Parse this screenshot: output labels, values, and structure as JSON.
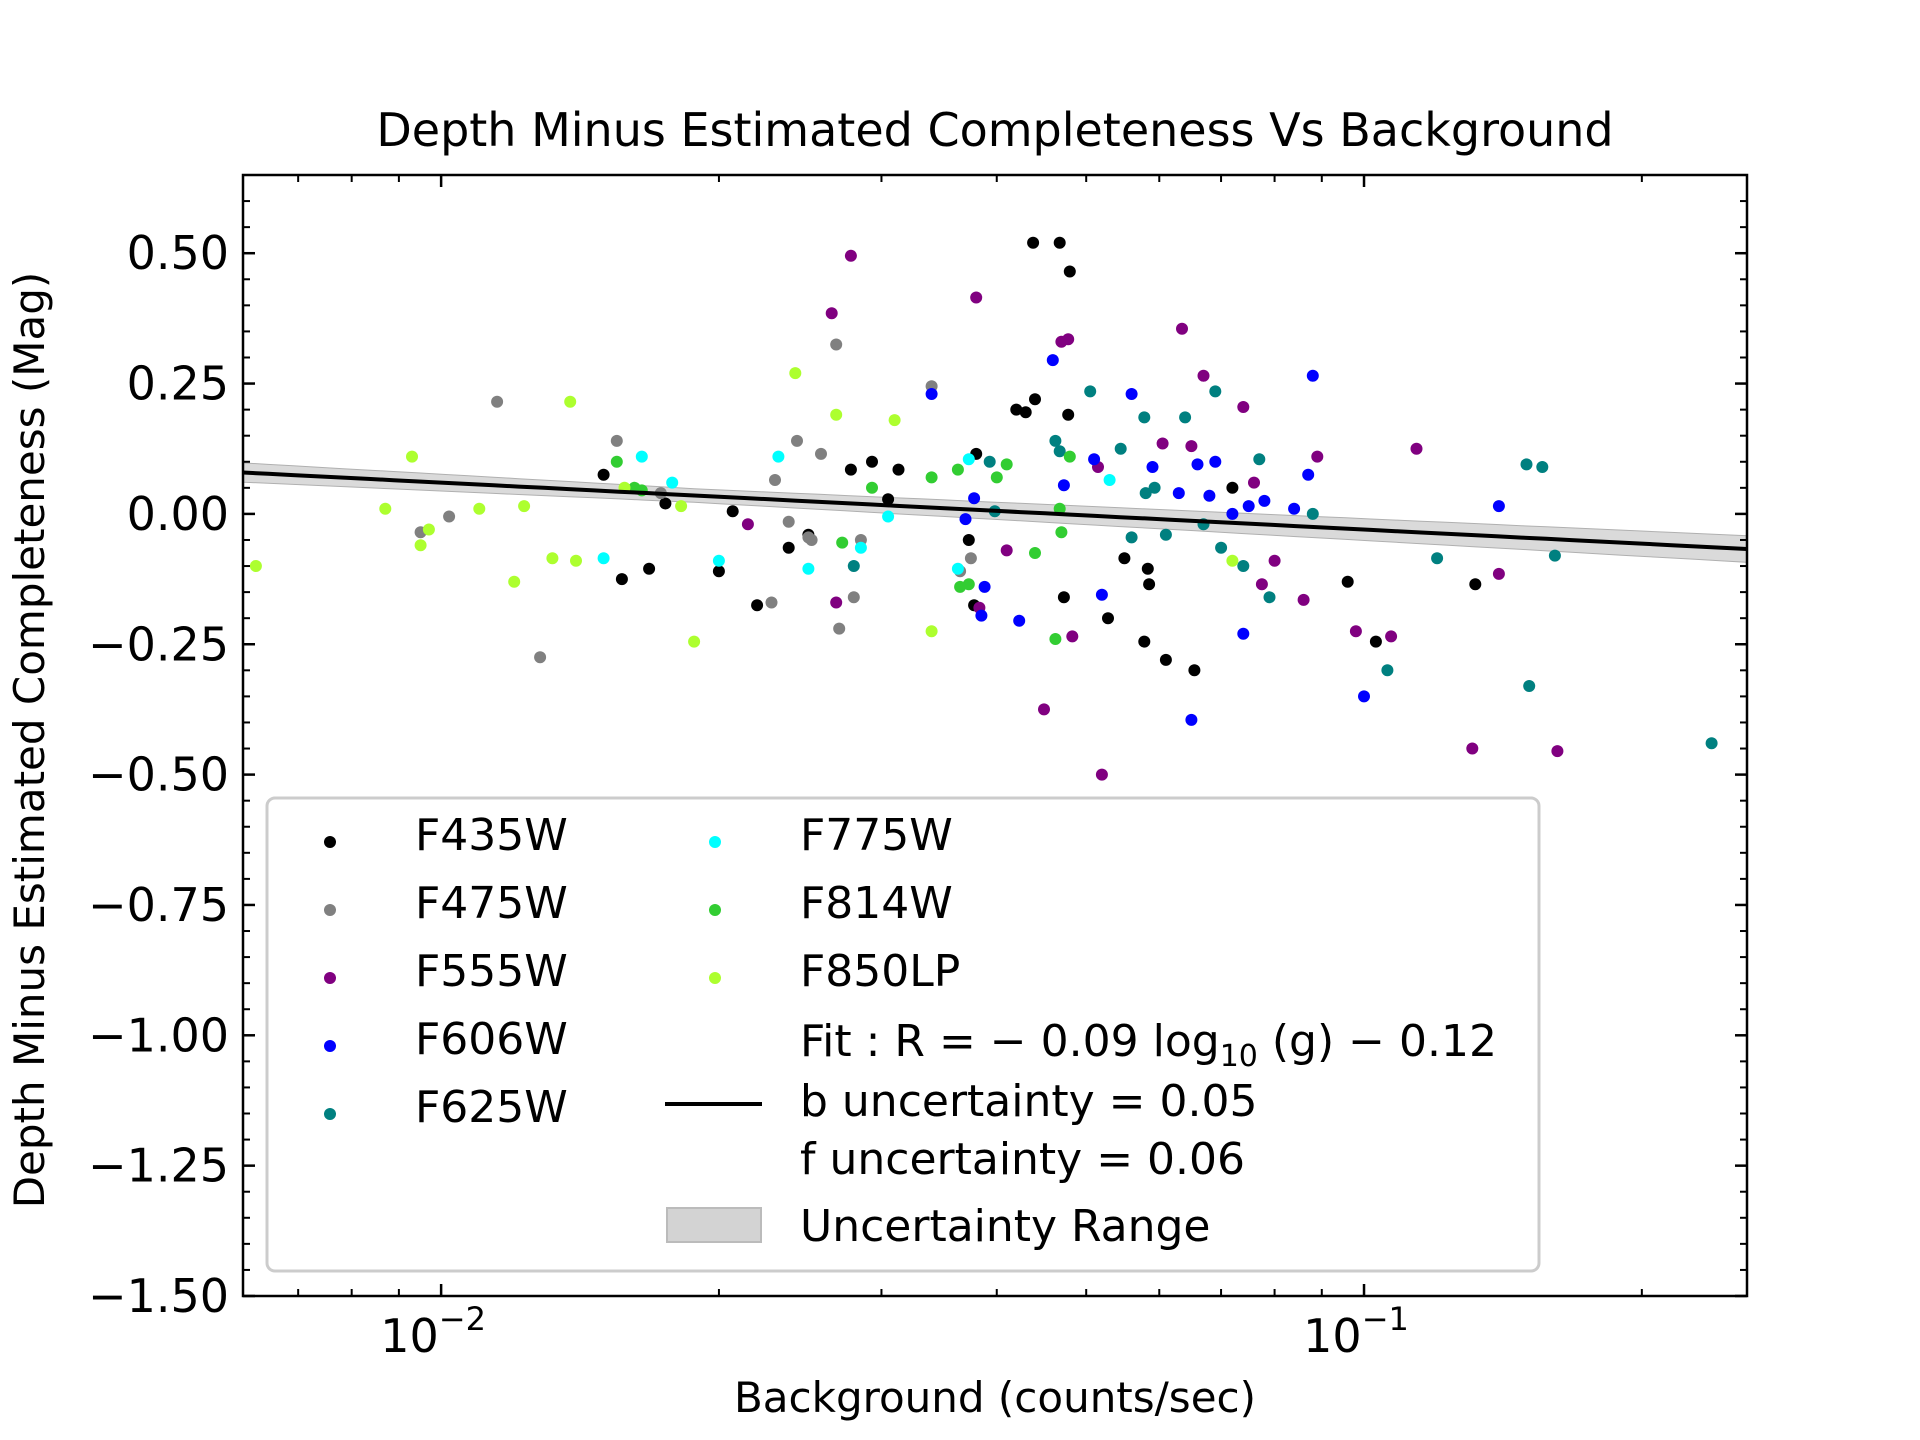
{
  "chart_data": {
    "type": "scatter",
    "title": "Depth Minus Estimated Completeness Vs Background",
    "xlabel": "Background (counts/sec)",
    "ylabel": "Depth Minus Estimated Completeness (Mag)",
    "xscale": "log",
    "xlim": [
      0.0061,
      0.26
    ],
    "ylim": [
      -1.5,
      0.65
    ],
    "yticks": [
      0.5,
      0.25,
      0.0,
      -0.25,
      -0.5,
      -0.75,
      -1.0,
      -1.25,
      -1.5
    ],
    "ytick_labels": [
      "0.50",
      "0.25",
      "0.00",
      "−0.25",
      "−0.50",
      "−0.75",
      "−1.00",
      "−1.25",
      "−1.50"
    ],
    "xticks": [
      0.01,
      0.1
    ],
    "xtick_labels": [
      {
        "base": "10",
        "exp": "−2"
      },
      {
        "base": "10",
        "exp": "−1"
      }
    ],
    "series": [
      {
        "name": "F435W",
        "color": "#000000",
        "points": [
          [
            0.015,
            0.075
          ],
          [
            0.0157,
            -0.125
          ],
          [
            0.0168,
            -0.105
          ],
          [
            0.0175,
            0.02
          ],
          [
            0.02,
            -0.11
          ],
          [
            0.0207,
            0.005
          ],
          [
            0.022,
            -0.175
          ],
          [
            0.0238,
            -0.065
          ],
          [
            0.025,
            -0.04
          ],
          [
            0.0278,
            0.085
          ],
          [
            0.0293,
            0.1
          ],
          [
            0.0305,
            0.028
          ],
          [
            0.0313,
            0.085
          ],
          [
            0.0373,
            -0.05
          ],
          [
            0.0378,
            -0.175
          ],
          [
            0.038,
            0.115
          ],
          [
            0.042,
            0.2
          ],
          [
            0.043,
            0.195
          ],
          [
            0.0438,
            0.52
          ],
          [
            0.044,
            0.22
          ],
          [
            0.0468,
            0.52
          ],
          [
            0.0473,
            -0.16
          ],
          [
            0.0478,
            0.19
          ],
          [
            0.048,
            0.465
          ],
          [
            0.0528,
            -0.2
          ],
          [
            0.055,
            -0.085
          ],
          [
            0.0578,
            -0.245
          ],
          [
            0.0583,
            -0.105
          ],
          [
            0.0585,
            -0.135
          ],
          [
            0.061,
            -0.28
          ],
          [
            0.0655,
            -0.3
          ],
          [
            0.072,
            0.05
          ],
          [
            0.096,
            -0.13
          ],
          [
            0.103,
            -0.245
          ],
          [
            0.132,
            -0.135
          ]
        ]
      },
      {
        "name": "F475W",
        "color": "#808080",
        "points": [
          [
            0.0095,
            -0.035
          ],
          [
            0.0102,
            -0.005
          ],
          [
            0.0115,
            0.215
          ],
          [
            0.0128,
            -0.275
          ],
          [
            0.0155,
            0.14
          ],
          [
            0.0173,
            0.04
          ],
          [
            0.0228,
            -0.17
          ],
          [
            0.023,
            0.065
          ],
          [
            0.0238,
            -0.015
          ],
          [
            0.0243,
            0.14
          ],
          [
            0.025,
            -0.045
          ],
          [
            0.0252,
            -0.05
          ],
          [
            0.0258,
            0.115
          ],
          [
            0.0268,
            0.325
          ],
          [
            0.027,
            -0.22
          ],
          [
            0.028,
            -0.16
          ],
          [
            0.0285,
            -0.05
          ],
          [
            0.034,
            0.245
          ],
          [
            0.0365,
            -0.11
          ],
          [
            0.0375,
            -0.085
          ]
        ]
      },
      {
        "name": "F555W",
        "color": "#800080",
        "points": [
          [
            0.0215,
            -0.02
          ],
          [
            0.0265,
            0.385
          ],
          [
            0.0268,
            -0.17
          ],
          [
            0.0278,
            0.495
          ],
          [
            0.038,
            0.415
          ],
          [
            0.0383,
            -0.18
          ],
          [
            0.041,
            -0.07
          ],
          [
            0.045,
            -0.375
          ],
          [
            0.047,
            0.33
          ],
          [
            0.0478,
            0.335
          ],
          [
            0.0483,
            -0.235
          ],
          [
            0.0515,
            0.09
          ],
          [
            0.052,
            -0.5
          ],
          [
            0.0605,
            0.135
          ],
          [
            0.0635,
            0.355
          ],
          [
            0.065,
            0.13
          ],
          [
            0.067,
            0.265
          ],
          [
            0.074,
            0.205
          ],
          [
            0.076,
            0.06
          ],
          [
            0.0775,
            -0.135
          ],
          [
            0.08,
            -0.09
          ],
          [
            0.086,
            -0.165
          ],
          [
            0.089,
            0.11
          ],
          [
            0.098,
            -0.225
          ],
          [
            0.107,
            -0.235
          ],
          [
            0.114,
            0.125
          ],
          [
            0.131,
            -0.45
          ],
          [
            0.14,
            -0.115
          ],
          [
            0.162,
            -0.455
          ]
        ]
      },
      {
        "name": "F606W",
        "color": "#0000ff",
        "points": [
          [
            0.034,
            0.23
          ],
          [
            0.037,
            -0.01
          ],
          [
            0.0378,
            0.03
          ],
          [
            0.0385,
            -0.195
          ],
          [
            0.0388,
            -0.14
          ],
          [
            0.0423,
            -0.205
          ],
          [
            0.046,
            0.295
          ],
          [
            0.0473,
            0.055
          ],
          [
            0.051,
            0.105
          ],
          [
            0.052,
            -0.155
          ],
          [
            0.056,
            0.23
          ],
          [
            0.059,
            0.09
          ],
          [
            0.063,
            0.04
          ],
          [
            0.065,
            -0.395
          ],
          [
            0.066,
            0.095
          ],
          [
            0.068,
            0.035
          ],
          [
            0.069,
            0.1
          ],
          [
            0.072,
            0.0
          ],
          [
            0.074,
            -0.23
          ],
          [
            0.075,
            0.015
          ],
          [
            0.078,
            0.025
          ],
          [
            0.084,
            0.01
          ],
          [
            0.087,
            0.075
          ],
          [
            0.088,
            0.265
          ],
          [
            0.1,
            -0.35
          ],
          [
            0.14,
            0.015
          ]
        ]
      },
      {
        "name": "F625W",
        "color": "#008080",
        "points": [
          [
            0.028,
            -0.1
          ],
          [
            0.0393,
            0.1
          ],
          [
            0.0398,
            0.005
          ],
          [
            0.0463,
            0.14
          ],
          [
            0.0468,
            0.12
          ],
          [
            0.0505,
            0.235
          ],
          [
            0.0545,
            0.125
          ],
          [
            0.056,
            -0.045
          ],
          [
            0.0578,
            0.185
          ],
          [
            0.058,
            0.04
          ],
          [
            0.0593,
            0.05
          ],
          [
            0.061,
            -0.04
          ],
          [
            0.064,
            0.185
          ],
          [
            0.067,
            -0.02
          ],
          [
            0.069,
            0.235
          ],
          [
            0.07,
            -0.065
          ],
          [
            0.074,
            -0.1
          ],
          [
            0.077,
            0.105
          ],
          [
            0.079,
            -0.16
          ],
          [
            0.088,
            0.0
          ],
          [
            0.106,
            -0.3
          ],
          [
            0.12,
            -0.085
          ],
          [
            0.15,
            0.095
          ],
          [
            0.151,
            -0.33
          ],
          [
            0.156,
            0.09
          ],
          [
            0.161,
            -0.08
          ],
          [
            0.238,
            -0.44
          ]
        ]
      },
      {
        "name": "F775W",
        "color": "#00ffff",
        "points": [
          [
            0.015,
            -0.085
          ],
          [
            0.0165,
            0.11
          ],
          [
            0.0178,
            0.06
          ],
          [
            0.02,
            -0.09
          ],
          [
            0.0232,
            0.11
          ],
          [
            0.025,
            -0.105
          ],
          [
            0.0285,
            -0.065
          ],
          [
            0.0305,
            -0.005
          ],
          [
            0.0363,
            -0.105
          ],
          [
            0.0373,
            0.105
          ],
          [
            0.053,
            0.065
          ]
        ]
      },
      {
        "name": "F814W",
        "color": "#32cd32",
        "points": [
          [
            0.0155,
            0.1
          ],
          [
            0.0162,
            0.05
          ],
          [
            0.0165,
            0.045
          ],
          [
            0.0272,
            -0.055
          ],
          [
            0.0293,
            0.05
          ],
          [
            0.034,
            0.07
          ],
          [
            0.0363,
            0.085
          ],
          [
            0.0365,
            -0.14
          ],
          [
            0.0373,
            -0.135
          ],
          [
            0.04,
            0.07
          ],
          [
            0.041,
            0.095
          ],
          [
            0.044,
            -0.075
          ],
          [
            0.0463,
            -0.24
          ],
          [
            0.0468,
            0.01
          ],
          [
            0.047,
            -0.035
          ],
          [
            0.048,
            0.11
          ]
        ]
      },
      {
        "name": "F850LP",
        "color": "#adff2f",
        "points": [
          [
            0.0063,
            -0.1
          ],
          [
            0.0087,
            0.01
          ],
          [
            0.0093,
            0.11
          ],
          [
            0.0095,
            -0.06
          ],
          [
            0.0097,
            -0.03
          ],
          [
            0.011,
            0.01
          ],
          [
            0.012,
            -0.13
          ],
          [
            0.0123,
            0.015
          ],
          [
            0.0132,
            -0.085
          ],
          [
            0.0138,
            0.215
          ],
          [
            0.014,
            -0.09
          ],
          [
            0.0158,
            0.05
          ],
          [
            0.0182,
            0.015
          ],
          [
            0.0188,
            -0.245
          ],
          [
            0.0242,
            0.27
          ],
          [
            0.0268,
            0.19
          ],
          [
            0.031,
            0.18
          ],
          [
            0.034,
            -0.225
          ],
          [
            0.072,
            -0.09
          ]
        ]
      }
    ],
    "fit": {
      "name": "Fit",
      "slope": -0.09,
      "intercept": -0.12,
      "b_uncertainty": 0.05,
      "f_uncertainty": 0.06,
      "color": "#000000",
      "band_color": "#d3d3d3"
    },
    "legend": {
      "position": "lower-left",
      "fit_line1_prefix": "Fit :  R = − 0.09 log",
      "fit_line1_sub": "10",
      "fit_line1_suffix": " (g)  − 0.12",
      "fit_line2": "b uncertainty = 0.05",
      "fit_line3": "f uncertainty = 0.06",
      "band_label": "Uncertainty Range"
    }
  }
}
